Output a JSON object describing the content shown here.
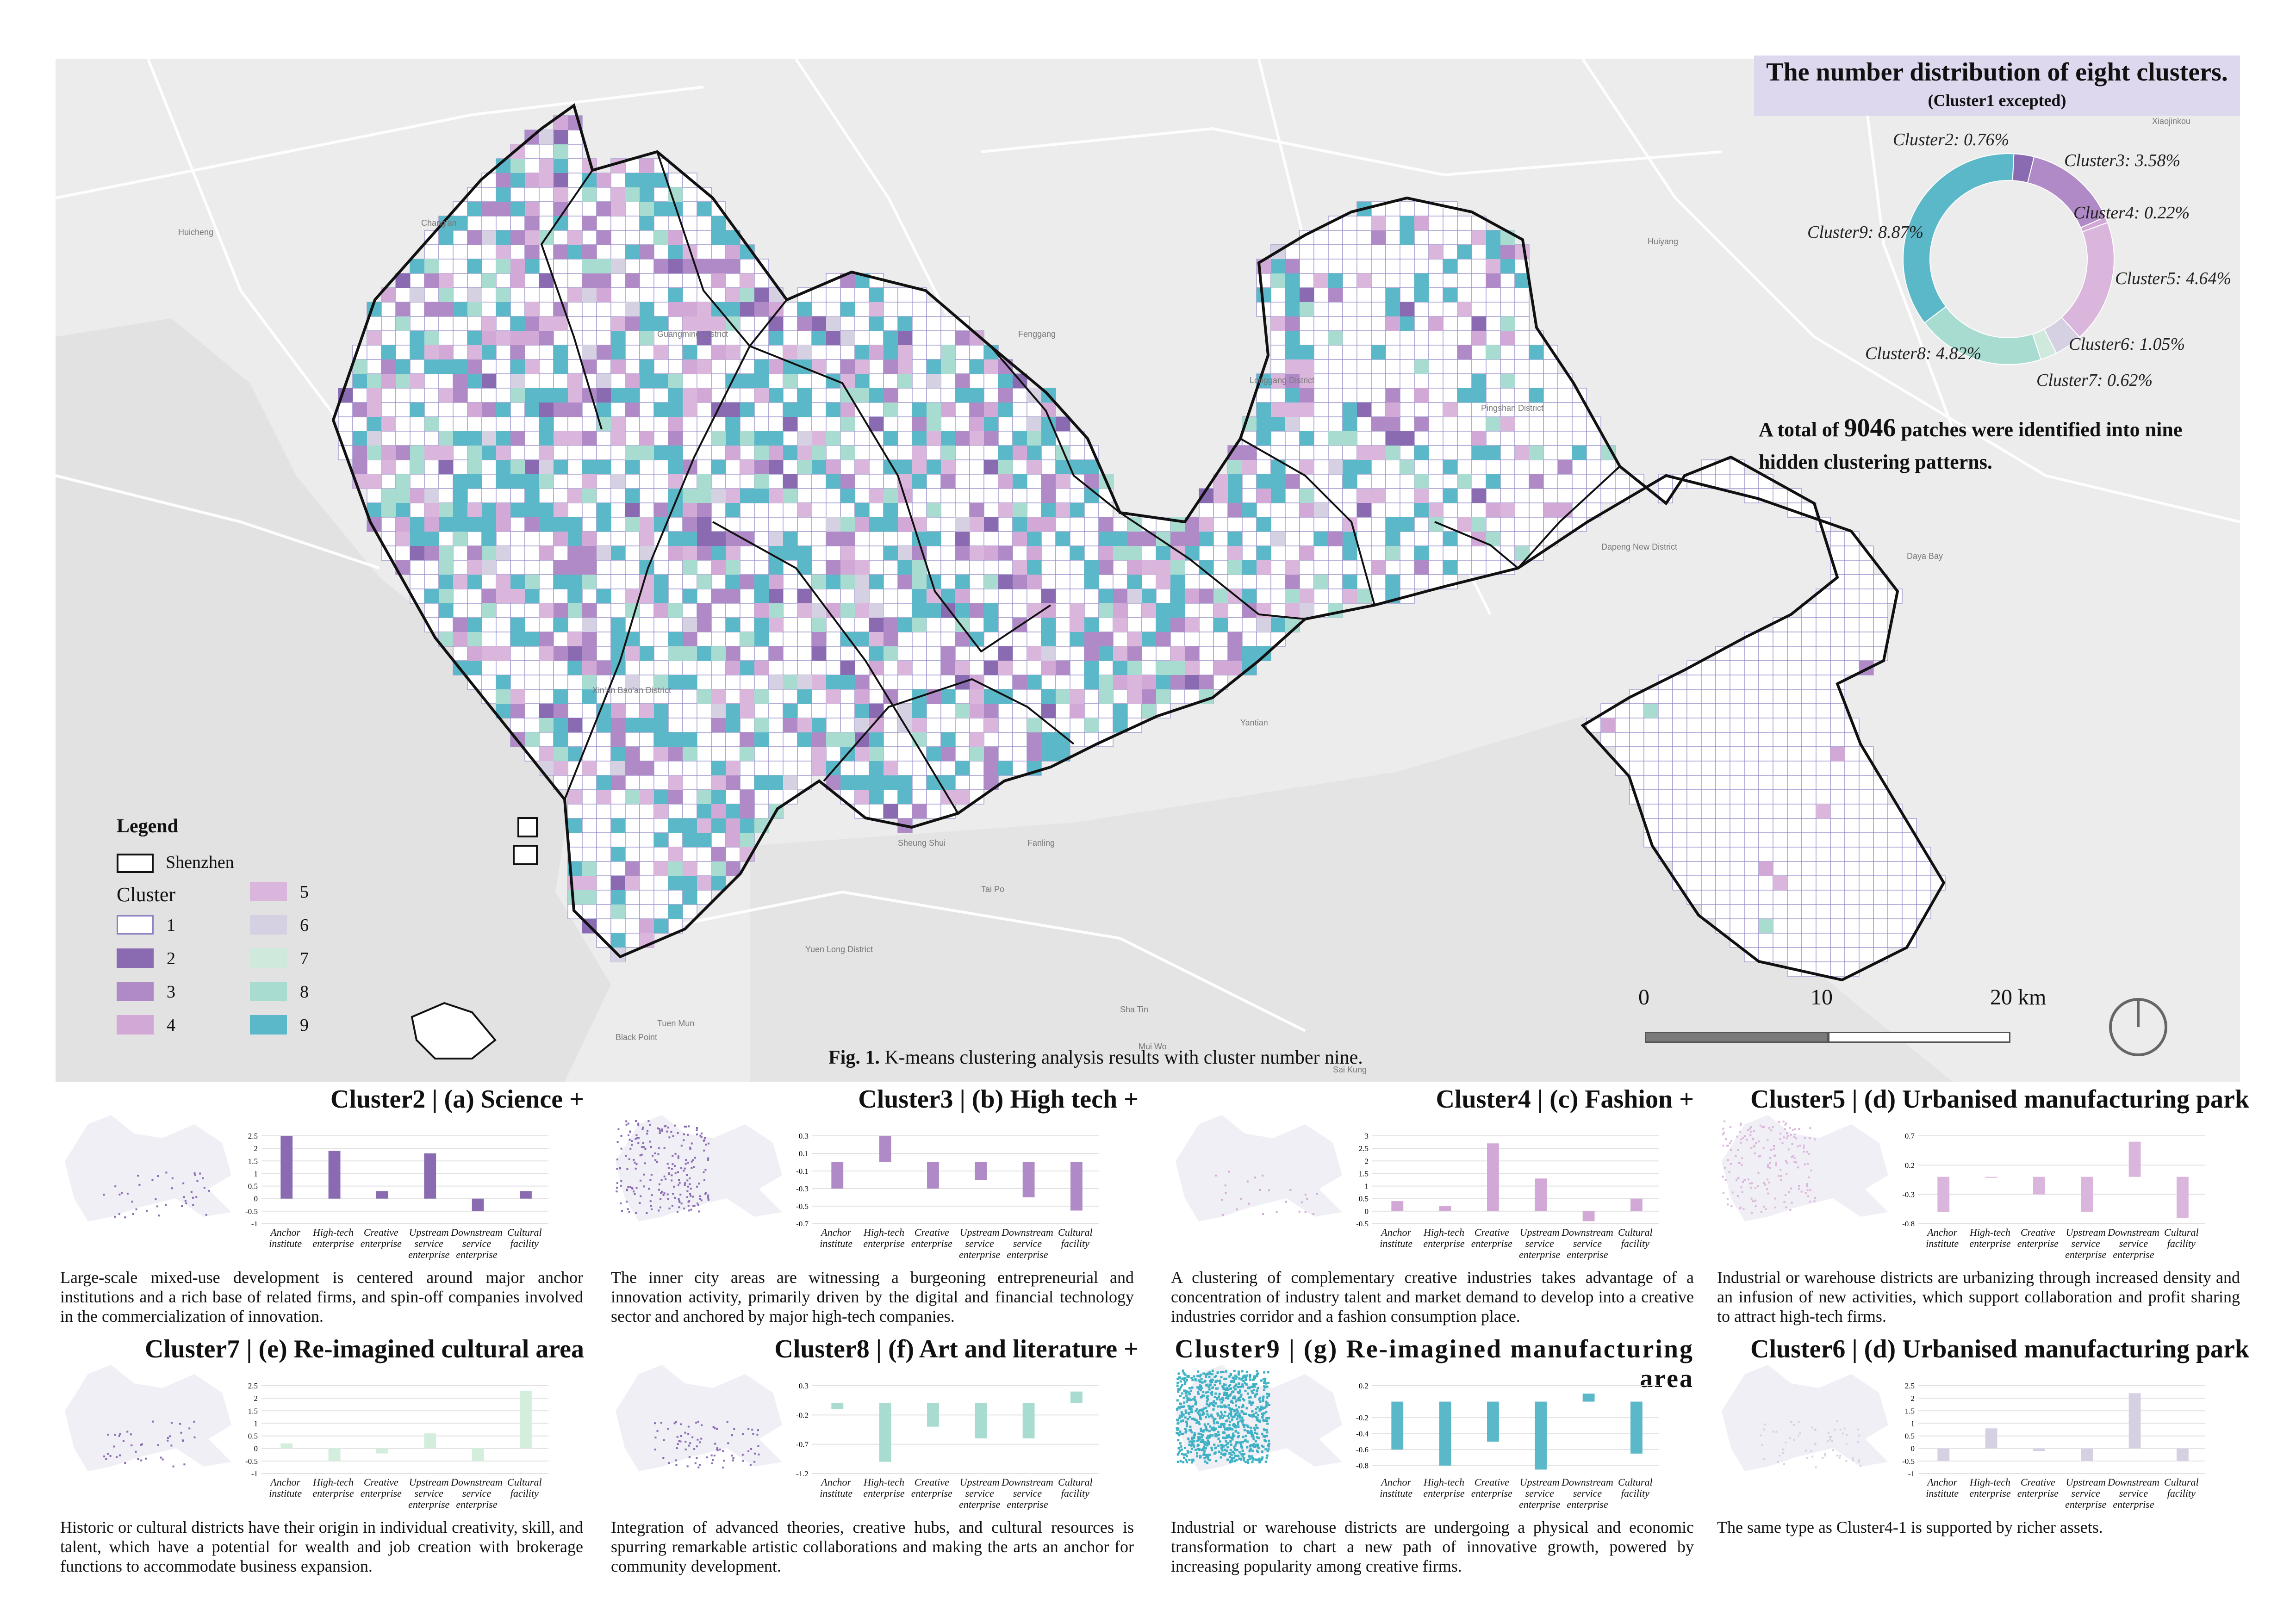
{
  "map": {
    "place_labels": [
      {
        "text": "Chang'an"
      },
      {
        "text": "Huicheng"
      },
      {
        "text": "Fenggang"
      },
      {
        "text": "Huiyang"
      },
      {
        "text": "Guangming District"
      },
      {
        "text": "Longgang District"
      },
      {
        "text": "Pingshan District"
      },
      {
        "text": "Xin'an Bao'an District"
      },
      {
        "text": "Dapeng New District"
      },
      {
        "text": "Yantian"
      },
      {
        "text": "Tuen Mun"
      },
      {
        "text": "Sai Kung"
      },
      {
        "text": "Sha Tin"
      },
      {
        "text": "Tai Po"
      },
      {
        "text": "Yuen Long District"
      },
      {
        "text": "Black Point"
      },
      {
        "text": "Mui Wo"
      },
      {
        "text": "Fanling"
      },
      {
        "text": "Sheung Shui"
      },
      {
        "text": "Xiaojinkou"
      },
      {
        "text": "Daya Bay"
      }
    ]
  },
  "header": {
    "title": "The number distribution of eight clusters.",
    "subtitle": "(Cluster1 excepted)"
  },
  "pie": {
    "labels": [
      "Cluster2: 0.76%",
      "Cluster3: 3.58%",
      "Cluster4: 0.22%",
      "Cluster5: 4.64%",
      "Cluster6: 1.05%",
      "Cluster7: 0.62%",
      "Cluster8: 4.82%",
      "Cluster9: 8.87%"
    ]
  },
  "chart_data": [
    {
      "type": "pie",
      "title": "The number distribution of eight clusters.",
      "subtitle": "(Cluster1 excepted)",
      "categories": [
        "Cluster2",
        "Cluster3",
        "Cluster4",
        "Cluster5",
        "Cluster6",
        "Cluster7",
        "Cluster8",
        "Cluster9"
      ],
      "values": [
        0.76,
        3.58,
        0.22,
        4.64,
        1.05,
        0.62,
        4.82,
        8.87
      ],
      "colors": [
        "#8a6bb2",
        "#b08ac6",
        "#d2a8d6",
        "#dbb6dc",
        "#d6d0e3",
        "#cfeadd",
        "#a9dcd1",
        "#5ab8c8"
      ]
    },
    {
      "type": "bar",
      "title": "Cluster2 | (a) Science +",
      "categories": [
        "Anchor institute",
        "High-tech enterprise",
        "Creative enterprise",
        "Upstream service enterprise",
        "Downstream service enterprise",
        "Cultural facility"
      ],
      "values": [
        2.5,
        1.9,
        0.3,
        1.8,
        -0.5,
        0.3
      ],
      "ylim": [
        -1,
        2.5
      ],
      "ticks": [
        "2.5",
        "2",
        "1.5",
        "1",
        "0.5",
        "0",
        "-0.5",
        "-1"
      ],
      "color": "#8a6bb2"
    },
    {
      "type": "bar",
      "title": "Cluster3 | (b) High tech +",
      "categories": [
        "Anchor institute",
        "High-tech enterprise",
        "Creative enterprise",
        "Upstream service enterprise",
        "Downstream service enterprise",
        "Cultural facility"
      ],
      "values": [
        -0.3,
        0.3,
        -0.3,
        -0.2,
        -0.4,
        -0.55
      ],
      "ylim": [
        -0.7,
        0.3
      ],
      "ticks": [
        "0.3",
        "0.1",
        "-0.1",
        "-0.3",
        "-0.5",
        "-0.7"
      ],
      "color": "#b08ac6"
    },
    {
      "type": "bar",
      "title": "Cluster4 | (c) Fashion +",
      "categories": [
        "Anchor institute",
        "High-tech enterprise",
        "Creative enterprise",
        "Upstream service enterprise",
        "Downstream service enterprise",
        "Cultural facility"
      ],
      "values": [
        0.4,
        0.2,
        2.7,
        1.3,
        -0.4,
        0.5
      ],
      "ylim": [
        -0.5,
        3
      ],
      "ticks": [
        "3",
        "2.5",
        "2",
        "1.5",
        "1",
        "0.5",
        "0",
        "-0.5"
      ],
      "color": "#d2a8d6"
    },
    {
      "type": "bar",
      "title": "Cluster5 | (d) Urbanised manufacturing park",
      "categories": [
        "Anchor institute",
        "High-tech enterprise",
        "Creative enterprise",
        "Upstream service enterprise",
        "Downstream service enterprise",
        "Cultural facility"
      ],
      "values": [
        -0.6,
        0.0,
        -0.3,
        -0.6,
        0.6,
        -0.7
      ],
      "ylim": [
        -0.8,
        0.7
      ],
      "ticks": [
        "0.7",
        "0.2",
        "-0.3",
        "-0.8"
      ],
      "color": "#dbb6dc"
    },
    {
      "type": "bar",
      "title": "Cluster7 | (e) Re-imagined cultural area",
      "categories": [
        "Anchor institute",
        "High-tech enterprise",
        "Creative enterprise",
        "Upstream service enterprise",
        "Downstream service enterprise",
        "Cultural facility"
      ],
      "values": [
        0.2,
        -0.5,
        -0.2,
        0.6,
        -0.5,
        2.3
      ],
      "ylim": [
        -1,
        2.5
      ],
      "ticks": [
        "2.5",
        "2",
        "1.5",
        "1",
        "0.5",
        "0",
        "-0.5",
        "-1"
      ],
      "color": "#cfeadd"
    },
    {
      "type": "bar",
      "title": "Cluster8 | (f) Art and literature +",
      "categories": [
        "Anchor institute",
        "High-tech enterprise",
        "Creative enterprise",
        "Upstream service enterprise",
        "Downstream service enterprise",
        "Cultural facility"
      ],
      "values": [
        -0.1,
        -1.0,
        -0.4,
        -0.6,
        -0.6,
        0.2
      ],
      "ylim": [
        -1.2,
        0.3
      ],
      "ticks": [
        "0.3",
        "-0.2",
        "-0.7",
        "-1.2"
      ],
      "color": "#a9dcd1"
    },
    {
      "type": "bar",
      "title": "Cluster9 | (g) Re-imagined manufacturing area",
      "categories": [
        "Anchor institute",
        "High-tech enterprise",
        "Creative enterprise",
        "Upstream service enterprise",
        "Downstream service enterprise",
        "Cultural facility"
      ],
      "values": [
        -0.6,
        -0.8,
        -0.5,
        -0.85,
        0.1,
        -0.65
      ],
      "ylim": [
        -0.9,
        0.2
      ],
      "ticks": [
        "0.2",
        "-0.2",
        "-0.4",
        "-0.6",
        "-0.8"
      ],
      "color": "#5ab8c8"
    },
    {
      "type": "bar",
      "title": "Cluster6 | (d) Urbanised manufacturing park",
      "categories": [
        "Anchor institute",
        "High-tech enterprise",
        "Creative enterprise",
        "Upstream service enterprise",
        "Downstream service enterprise",
        "Cultural facility"
      ],
      "values": [
        -0.5,
        0.8,
        -0.1,
        -0.5,
        2.2,
        -0.5
      ],
      "ylim": [
        -1,
        2.5
      ],
      "ticks": [
        "2.5",
        "2",
        "1.5",
        "1",
        "0.5",
        "0",
        "-0.5",
        "-1"
      ],
      "color": "#d6d0e3"
    }
  ],
  "total": {
    "prefix": "A total of ",
    "number": "9046",
    "suffix": " patches were identified into nine hidden clustering patterns."
  },
  "legend": {
    "title": "Legend",
    "boundary": "Shenzhen",
    "cluster_title": "Cluster",
    "items": [
      {
        "label": "1",
        "color": "#ffffff",
        "border": "#8c83c4"
      },
      {
        "label": "2",
        "color": "#8a6bb2"
      },
      {
        "label": "3",
        "color": "#b08ac6"
      },
      {
        "label": "4",
        "color": "#d2a8d6"
      },
      {
        "label": "5",
        "color": "#dbb6dc"
      },
      {
        "label": "6",
        "color": "#d6d0e3"
      },
      {
        "label": "7",
        "color": "#cfeadd"
      },
      {
        "label": "8",
        "color": "#a9dcd1"
      },
      {
        "label": "9",
        "color": "#5ab8c8"
      }
    ]
  },
  "scale": {
    "t0": "0",
    "t1": "10",
    "t2": "20 km"
  },
  "caption": {
    "bold": "Fig. 1.",
    "text": " K-means clustering analysis results with cluster number nine."
  },
  "panels": [
    {
      "title": "Cluster2 | (a) Science +",
      "desc": "Large-scale mixed-use development is centered around major anchor institutions and a rich base of related firms, and spin-off companies involved in the commercialization of innovation."
    },
    {
      "title": "Cluster3 | (b) High tech +",
      "desc": "The inner city areas are witnessing a burgeoning entrepreneurial and innovation activity, primarily driven by the digital and financial technology sector and anchored by major high-tech companies."
    },
    {
      "title": "Cluster4 | (c) Fashion +",
      "desc": "A clustering of complementary creative industries takes advantage of a concentration of industry talent and market demand to develop into a creative industries corridor and a fashion consumption place."
    },
    {
      "title": "Cluster5 | (d) Urbanised manufacturing park",
      "desc": "Industrial or warehouse districts are urbanizing through increased density and an infusion of new activities, which support collaboration and profit sharing to attract high-tech firms."
    },
    {
      "title": "Cluster7 | (e) Re-imagined cultural area",
      "desc": "Historic or cultural districts have their origin in individual creativity, skill, and talent, which have a potential for wealth and job creation with brokerage functions to accommodate business expansion."
    },
    {
      "title": "Cluster8 | (f) Art and literature +",
      "desc": "Integration of advanced theories, creative hubs, and cultural resources is spurring remarkable artistic collaborations and making the arts an anchor for community development."
    },
    {
      "title": "Cluster9 | (g) Re-imagined manufacturing area",
      "desc": "Industrial or warehouse districts are undergoing a physical and economic transformation to chart a new path of innovative growth, powered by increasing popularity among creative firms."
    },
    {
      "title": "Cluster6 | (d) Urbanised manufacturing park",
      "desc": "The same type as Cluster4-1 is supported by richer assets."
    }
  ],
  "axis_labels": [
    "Anchor institute",
    "High-tech enterprise",
    "Creative enterprise",
    "Upstream service enterprise",
    "Downstream service enterprise",
    "Cultural facility"
  ]
}
